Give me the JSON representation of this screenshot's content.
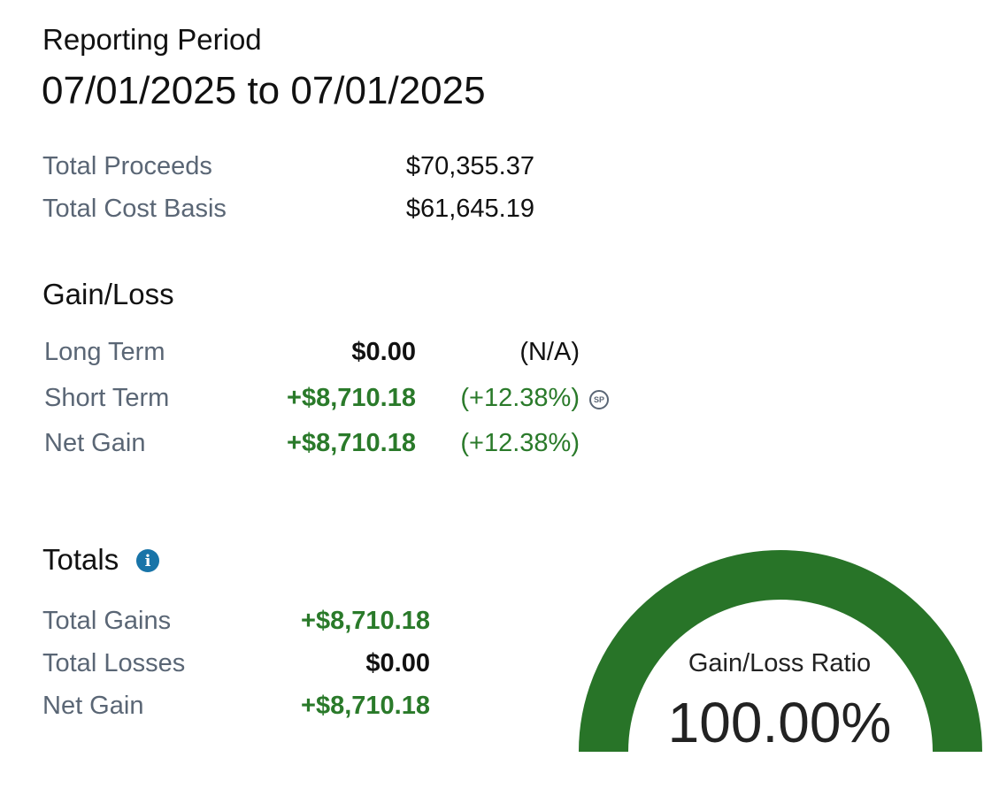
{
  "reporting_period": {
    "heading": "Reporting Period",
    "range": "07/01/2025 to 07/01/2025"
  },
  "summary": {
    "total_proceeds_label": "Total Proceeds",
    "total_proceeds_value": "$70,355.37",
    "total_cost_basis_label": "Total Cost Basis",
    "total_cost_basis_value": "$61,645.19"
  },
  "gain_loss": {
    "heading": "Gain/Loss",
    "rows": [
      {
        "label": "Long Term",
        "value": "$0.00",
        "percent": "(N/A)"
      },
      {
        "label": "Short Term",
        "value": "+$8,710.18",
        "percent": "(+12.38%)",
        "badge": "SP"
      },
      {
        "label": "Net Gain",
        "value": "+$8,710.18",
        "percent": "(+12.38%)"
      }
    ]
  },
  "totals": {
    "heading": "Totals",
    "info_icon": "info-icon",
    "rows": [
      {
        "label": "Total Gains",
        "value": "+$8,710.18"
      },
      {
        "label": "Total Losses",
        "value": "$0.00"
      },
      {
        "label": "Net Gain",
        "value": "+$8,710.18"
      }
    ]
  },
  "gauge": {
    "label": "Gain/Loss Ratio",
    "value_text": "100.00%",
    "ratio": 1.0,
    "color": "#287428"
  },
  "colors": {
    "gain": "#2a7a2a",
    "label": "#5a6675",
    "info": "#1874a8"
  }
}
